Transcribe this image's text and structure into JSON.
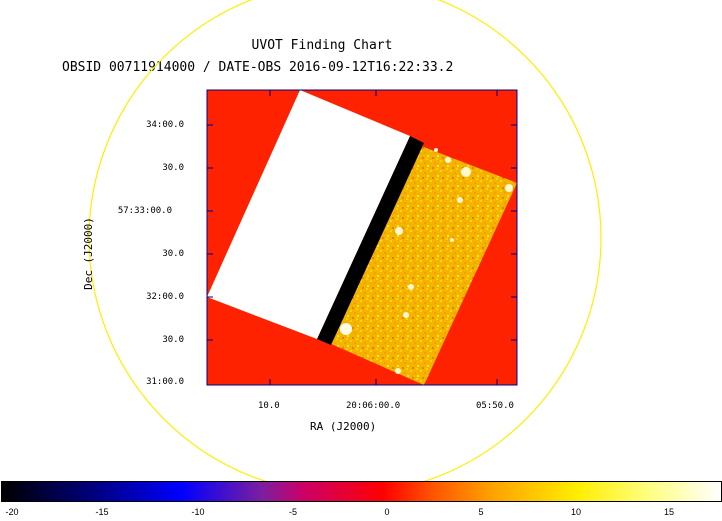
{
  "header": {
    "title": "UVOT Finding Chart",
    "subtitle": "OBSID 00711914000 / DATE-OBS 2016-09-12T16:22:33.2"
  },
  "axes": {
    "dec_label": "Dec (J2000)",
    "ra_label": "RA (J2000)",
    "dec_ticks": [
      "34:00.0",
      "30.0",
      "57:33:00.0",
      "30.0",
      "32:00.0",
      "30.0",
      "31:00.0"
    ],
    "ra_ticks": [
      "10.0",
      "20:06:00.0",
      "05:50.0"
    ]
  },
  "colorbar": {
    "labels": [
      "-20",
      "-15",
      "-10",
      "-5",
      "0",
      "5",
      "10",
      "15"
    ],
    "range": [
      -20,
      17.5
    ]
  },
  "colors": {
    "background_field": "#ff2200",
    "frame": "#00008b",
    "circle": "#ffee00",
    "exposure": "#ffcc00"
  }
}
